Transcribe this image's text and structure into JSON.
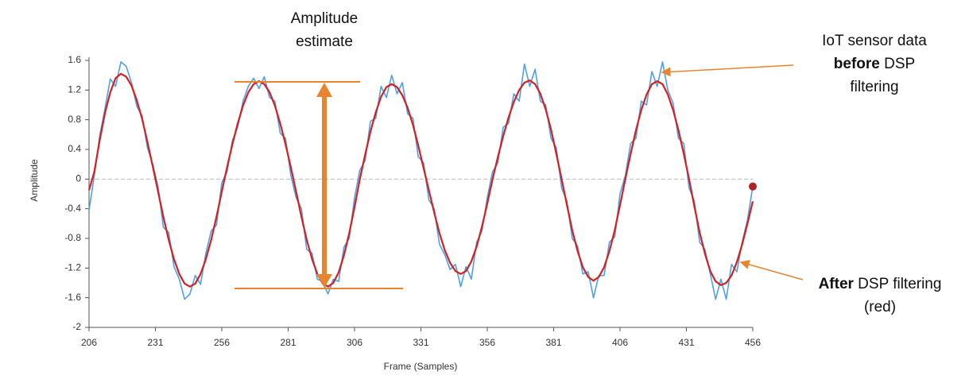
{
  "chart_data": {
    "type": "line",
    "xlabel": "Frame (Samples)",
    "ylabel": "Amplitude",
    "xlim": [
      206,
      456
    ],
    "xticks": [
      206,
      231,
      256,
      281,
      306,
      331,
      356,
      381,
      406,
      431,
      456
    ],
    "ylim": [
      -2,
      1.6
    ],
    "yticks": [
      -2,
      -1.6,
      -1.2,
      -0.8,
      -0.4,
      0,
      0.4,
      0.8,
      1.2,
      1.6
    ],
    "zero_line": true,
    "x": [
      206,
      208,
      210,
      212,
      214,
      216,
      218,
      220,
      222,
      224,
      226,
      228,
      230,
      232,
      234,
      236,
      238,
      240,
      242,
      244,
      246,
      248,
      250,
      252,
      254,
      256,
      258,
      260,
      262,
      264,
      266,
      268,
      270,
      272,
      274,
      276,
      278,
      280,
      282,
      284,
      286,
      288,
      290,
      292,
      294,
      296,
      298,
      300,
      302,
      304,
      306,
      308,
      310,
      312,
      314,
      316,
      318,
      320,
      322,
      324,
      326,
      328,
      330,
      332,
      334,
      336,
      338,
      340,
      342,
      344,
      346,
      348,
      350,
      352,
      354,
      356,
      358,
      360,
      362,
      364,
      366,
      368,
      370,
      372,
      374,
      376,
      378,
      380,
      382,
      384,
      386,
      388,
      390,
      392,
      394,
      396,
      398,
      400,
      402,
      404,
      406,
      408,
      410,
      412,
      414,
      416,
      418,
      420,
      422,
      424,
      426,
      428,
      430,
      432,
      434,
      436,
      438,
      440,
      442,
      444,
      446,
      448,
      450,
      452,
      454,
      456
    ],
    "series": [
      {
        "name": "IoT sensor data before DSP filtering",
        "color": "#4ea1e8",
        "end_marker_color": "#b22222",
        "values": [
          -0.42,
          0.05,
          0.58,
          0.95,
          1.35,
          1.25,
          1.58,
          1.52,
          1.3,
          0.98,
          0.85,
          0.42,
          0.2,
          -0.1,
          -0.65,
          -0.72,
          -1.18,
          -1.35,
          -1.62,
          -1.55,
          -1.3,
          -1.42,
          -1.0,
          -0.7,
          -0.62,
          -0.05,
          0.1,
          0.52,
          0.7,
          1.05,
          1.25,
          1.36,
          1.22,
          1.38,
          1.1,
          1.05,
          0.62,
          0.55,
          0.05,
          -0.25,
          -0.4,
          -0.95,
          -1.0,
          -1.35,
          -1.38,
          -1.55,
          -1.35,
          -1.38,
          -0.92,
          -0.8,
          -0.25,
          0.12,
          0.25,
          0.78,
          0.82,
          1.25,
          1.1,
          1.4,
          1.15,
          1.3,
          0.88,
          0.82,
          0.3,
          0.22,
          -0.28,
          -0.4,
          -0.88,
          -1.02,
          -1.22,
          -1.15,
          -1.45,
          -1.18,
          -1.35,
          -0.85,
          -0.7,
          -0.25,
          0.1,
          0.22,
          0.7,
          0.75,
          1.15,
          1.05,
          1.55,
          1.25,
          1.48,
          1.05,
          1.0,
          0.55,
          0.42,
          -0.12,
          -0.3,
          -0.8,
          -0.9,
          -1.28,
          -1.25,
          -1.6,
          -1.3,
          -1.3,
          -0.85,
          -0.78,
          -0.2,
          0.05,
          0.48,
          0.55,
          1.05,
          1.0,
          1.45,
          1.25,
          1.58,
          1.2,
          1.02,
          0.55,
          0.48,
          -0.12,
          -0.3,
          -0.85,
          -0.95,
          -1.28,
          -1.62,
          -1.35,
          -1.62,
          -1.15,
          -1.25,
          -0.85,
          -0.55,
          -0.1
        ]
      },
      {
        "name": "After DSP filtering (red)",
        "color": "#d42020",
        "values": [
          -0.15,
          0.1,
          0.52,
          0.89,
          1.17,
          1.36,
          1.42,
          1.38,
          1.26,
          1.06,
          0.81,
          0.5,
          0.17,
          -0.17,
          -0.51,
          -0.82,
          -1.08,
          -1.28,
          -1.41,
          -1.45,
          -1.41,
          -1.28,
          -1.08,
          -0.82,
          -0.51,
          -0.17,
          0.16,
          0.47,
          0.75,
          0.99,
          1.17,
          1.28,
          1.32,
          1.28,
          1.17,
          0.99,
          0.75,
          0.47,
          0.16,
          -0.17,
          -0.51,
          -0.82,
          -1.08,
          -1.28,
          -1.41,
          -1.45,
          -1.4,
          -1.26,
          -1.03,
          -0.73,
          -0.38,
          0,
          0.33,
          0.64,
          0.9,
          1.11,
          1.24,
          1.28,
          1.24,
          1.13,
          0.96,
          0.73,
          0.45,
          0.15,
          -0.15,
          -0.45,
          -0.73,
          -0.96,
          -1.13,
          -1.24,
          -1.28,
          -1.24,
          -1.11,
          -0.91,
          -0.64,
          -0.33,
          0,
          0.3,
          0.58,
          0.83,
          1.04,
          1.2,
          1.3,
          1.33,
          1.28,
          1.15,
          0.94,
          0.67,
          0.34,
          0,
          -0.35,
          -0.69,
          -0.97,
          -1.19,
          -1.32,
          -1.37,
          -1.32,
          -1.19,
          -0.97,
          -0.69,
          -0.35,
          0,
          0.34,
          0.66,
          0.93,
          1.14,
          1.28,
          1.32,
          1.28,
          1.14,
          0.93,
          0.66,
          0.34,
          0,
          -0.37,
          -0.72,
          -1.01,
          -1.24,
          -1.38,
          -1.43,
          -1.4,
          -1.3,
          -1.12,
          -0.88,
          -0.6,
          -0.3
        ]
      }
    ],
    "annotations": [
      {
        "lines": [
          [
            {
              "text": "Amplitude",
              "bold": false
            }
          ],
          [
            {
              "text": "estimate",
              "bold": false
            }
          ]
        ]
      },
      {
        "lines": [
          [
            {
              "text": "IoT sensor data",
              "bold": false
            }
          ],
          [
            {
              "text": "before",
              "bold": true
            },
            {
              "text": " DSP",
              "bold": false
            }
          ],
          [
            {
              "text": "filtering",
              "bold": false
            }
          ]
        ]
      },
      {
        "lines": [
          [
            {
              "text": "After",
              "bold": true
            },
            {
              "text": " DSP filtering",
              "bold": false
            }
          ],
          [
            {
              "text": "(red)",
              "bold": false
            }
          ]
        ]
      }
    ],
    "annotation_color": "#e8842e"
  }
}
